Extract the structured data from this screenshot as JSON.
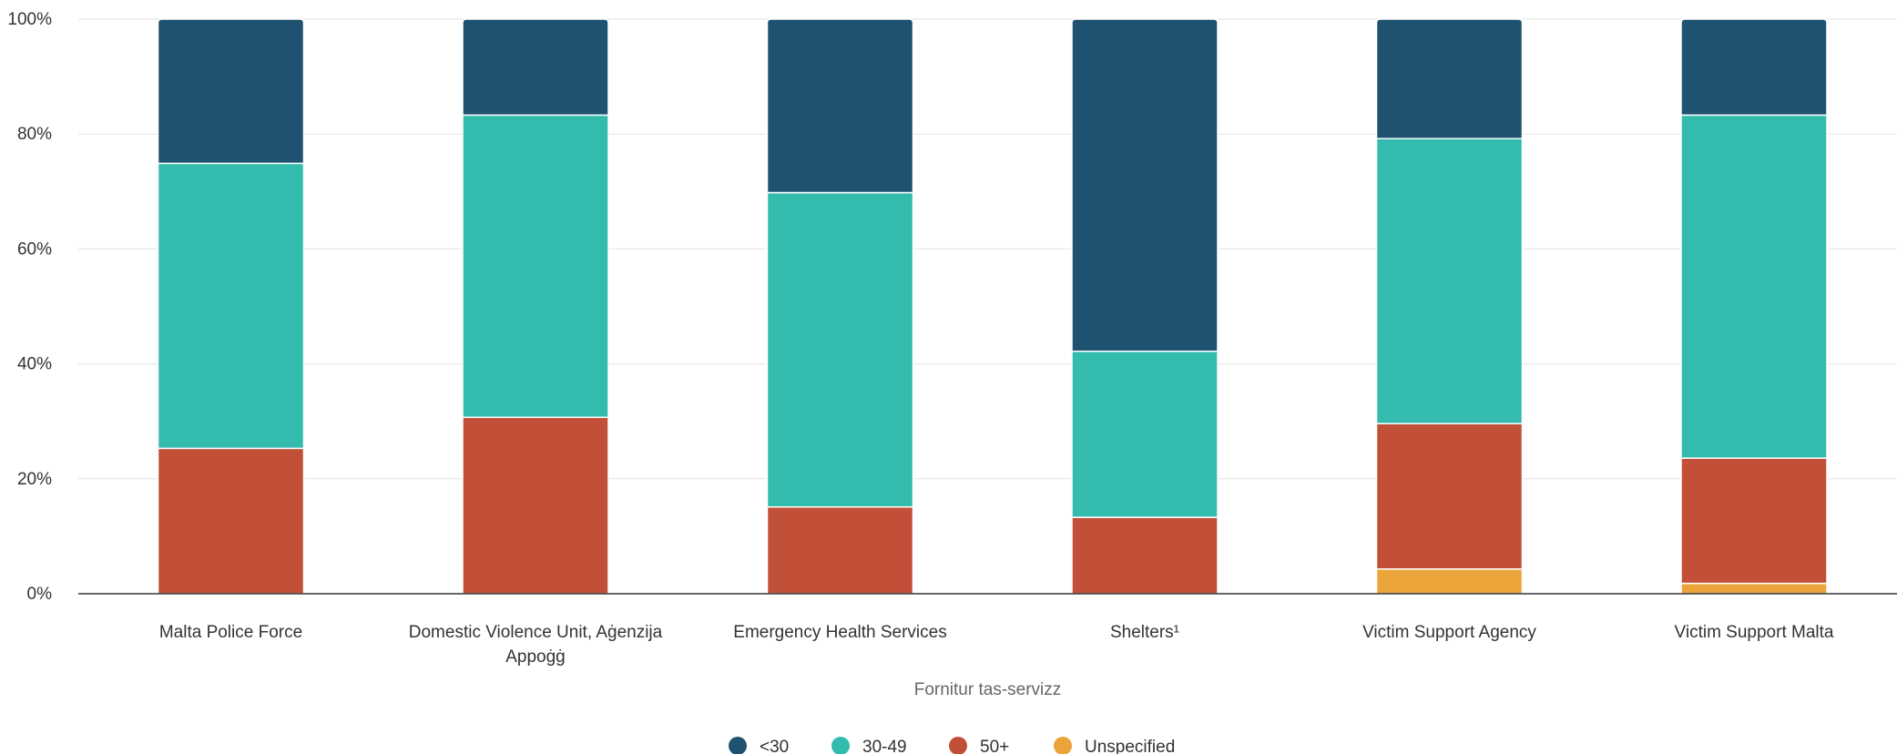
{
  "chart_data": {
    "type": "bar",
    "stacked": true,
    "normalized": true,
    "title": "",
    "xlabel": "Fornitur tas-servizz",
    "ylabel": "",
    "ylim": [
      0,
      100
    ],
    "yticks": [
      "0%",
      "20%",
      "40%",
      "60%",
      "80%",
      "100%"
    ],
    "ytick_values": [
      0,
      20,
      40,
      60,
      80,
      100
    ],
    "grid": true,
    "legend_position": "bottom",
    "categories": [
      [
        "Malta Police Force"
      ],
      [
        "Domestic Violence Unit, Aġenzija",
        "Appoġġ"
      ],
      [
        "Emergency Health Services"
      ],
      [
        "Shelters¹"
      ],
      [
        "Victim Support Agency"
      ],
      [
        "Victim Support Malta"
      ]
    ],
    "series": [
      {
        "name": "Unspecified",
        "color": "#EBA43A",
        "values": [
          0,
          0,
          0,
          0,
          4.3,
          1.8
        ]
      },
      {
        "name": "50+",
        "color": "#C25038",
        "values": [
          25.3,
          30.7,
          15.1,
          13.3,
          25.3,
          21.8
        ]
      },
      {
        "name": "30-49",
        "color": "#33BBAD",
        "values": [
          49.6,
          52.6,
          54.7,
          28.9,
          49.6,
          59.7
        ]
      },
      {
        "name": "<30",
        "color": "#1F5270",
        "values": [
          25.1,
          16.7,
          30.2,
          57.8,
          20.8,
          16.7
        ]
      }
    ],
    "legend_order": [
      "<30",
      "30-49",
      "50+",
      "Unspecified"
    ]
  }
}
